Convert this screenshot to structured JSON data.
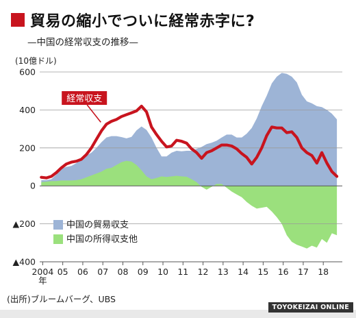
{
  "header": {
    "title": "貿易の縮小でついに経常赤字に?",
    "subtitle": "—中国の経常収支の推移—"
  },
  "footer": {
    "source": "(出所)ブルームバーグ、UBS",
    "credit": "TOYOKEIZAI ONLINE"
  },
  "colors": {
    "trade": "#9db4d6",
    "income": "#9be07d",
    "current": "#c8141e",
    "title_mark": "#c8141e"
  },
  "chart_data": {
    "type": "area",
    "unit_label": "(10億ドル)",
    "ylim": [
      -400,
      600
    ],
    "y_ticks": [
      {
        "value": 600,
        "label": "600"
      },
      {
        "value": 400,
        "label": "400"
      },
      {
        "value": 200,
        "label": "200"
      },
      {
        "value": 0,
        "label": "0"
      },
      {
        "value": -200,
        "label": "▲200"
      },
      {
        "value": -400,
        "label": "▲400"
      }
    ],
    "x_start": 2003.85,
    "x_end": 2018.95,
    "x_ticks": [
      {
        "year": 2004,
        "label": "2004",
        "sublabel": "年"
      },
      {
        "year": 2005,
        "label": "05"
      },
      {
        "year": 2006,
        "label": "06"
      },
      {
        "year": 2007,
        "label": "07"
      },
      {
        "year": 2008,
        "label": "08"
      },
      {
        "year": 2009,
        "label": "09"
      },
      {
        "year": 2010,
        "label": "10"
      },
      {
        "year": 2011,
        "label": "11"
      },
      {
        "year": 2012,
        "label": "12"
      },
      {
        "year": 2013,
        "label": "13"
      },
      {
        "year": 2014,
        "label": "14"
      },
      {
        "year": 2015,
        "label": "15"
      },
      {
        "year": 2016,
        "label": "16"
      },
      {
        "year": 2017,
        "label": "17"
      },
      {
        "year": 2018,
        "label": "18"
      }
    ],
    "legend_position": "bottom-left",
    "series": [
      {
        "name": "中国の貿易収支",
        "kind": "area",
        "color": "#9db4d6",
        "x": [
          2003.93,
          2004.18,
          2004.43,
          2004.68,
          2004.93,
          2005.18,
          2005.43,
          2005.68,
          2005.93,
          2006.18,
          2006.43,
          2006.68,
          2006.93,
          2007.18,
          2007.43,
          2007.68,
          2007.93,
          2008.18,
          2008.43,
          2008.68,
          2008.93,
          2009.18,
          2009.43,
          2009.68,
          2009.93,
          2010.18,
          2010.43,
          2010.68,
          2010.93,
          2011.18,
          2011.43,
          2011.68,
          2011.93,
          2012.18,
          2012.43,
          2012.68,
          2012.93,
          2013.18,
          2013.43,
          2013.68,
          2013.93,
          2014.18,
          2014.43,
          2014.68,
          2014.93,
          2015.18,
          2015.43,
          2015.68,
          2015.93,
          2016.18,
          2016.43,
          2016.68,
          2016.93,
          2017.18,
          2017.43,
          2017.68,
          2017.93,
          2018.18,
          2018.43,
          2018.68
        ],
        "values": [
          30,
          30,
          35,
          60,
          90,
          100,
          105,
          120,
          145,
          160,
          175,
          200,
          230,
          255,
          262,
          262,
          257,
          250,
          258,
          292,
          313,
          295,
          255,
          200,
          155,
          155,
          175,
          185,
          182,
          185,
          185,
          195,
          205,
          220,
          227,
          238,
          255,
          270,
          270,
          255,
          255,
          275,
          305,
          355,
          420,
          475,
          540,
          575,
          595,
          590,
          575,
          545,
          480,
          445,
          435,
          420,
          415,
          400,
          380,
          350
        ]
      },
      {
        "name": "中国の所得収支他",
        "kind": "area",
        "color": "#9be07d",
        "x": [
          2003.93,
          2004.18,
          2004.43,
          2004.68,
          2004.93,
          2005.18,
          2005.43,
          2005.68,
          2005.93,
          2006.18,
          2006.43,
          2006.68,
          2006.93,
          2007.18,
          2007.43,
          2007.68,
          2007.93,
          2008.18,
          2008.43,
          2008.68,
          2008.93,
          2009.18,
          2009.43,
          2009.68,
          2009.93,
          2010.18,
          2010.43,
          2010.68,
          2010.93,
          2011.18,
          2011.43,
          2011.68,
          2011.93,
          2012.18,
          2012.43,
          2012.68,
          2012.93,
          2013.18,
          2013.43,
          2013.68,
          2013.93,
          2014.18,
          2014.43,
          2014.68,
          2014.93,
          2015.18,
          2015.43,
          2015.68,
          2015.93,
          2016.18,
          2016.43,
          2016.68,
          2016.93,
          2017.18,
          2017.43,
          2017.68,
          2017.93,
          2018.18,
          2018.43,
          2018.68
        ],
        "values": [
          20,
          22,
          25,
          25,
          28,
          28,
          28,
          30,
          35,
          45,
          55,
          65,
          75,
          90,
          95,
          110,
          125,
          132,
          128,
          110,
          82,
          50,
          35,
          42,
          50,
          47,
          50,
          53,
          50,
          48,
          35,
          20,
          -5,
          -20,
          -5,
          10,
          10,
          -10,
          -30,
          -45,
          -60,
          -85,
          -105,
          -120,
          -115,
          -110,
          -135,
          -165,
          -200,
          -260,
          -295,
          -310,
          -320,
          -330,
          -315,
          -325,
          -280,
          -300,
          -250,
          -260
        ]
      },
      {
        "name": "経常収支",
        "kind": "line",
        "color": "#c8141e",
        "label_year": 2006.9,
        "x": [
          2003.93,
          2004.18,
          2004.43,
          2004.68,
          2004.93,
          2005.18,
          2005.43,
          2005.68,
          2005.93,
          2006.18,
          2006.43,
          2006.68,
          2006.93,
          2007.18,
          2007.43,
          2007.68,
          2007.93,
          2008.18,
          2008.43,
          2008.68,
          2008.93,
          2009.18,
          2009.43,
          2009.68,
          2009.93,
          2010.18,
          2010.43,
          2010.68,
          2010.93,
          2011.18,
          2011.43,
          2011.68,
          2011.93,
          2012.18,
          2012.43,
          2012.68,
          2012.93,
          2013.18,
          2013.43,
          2013.68,
          2013.93,
          2014.18,
          2014.43,
          2014.68,
          2014.93,
          2015.18,
          2015.43,
          2015.68,
          2015.93,
          2016.18,
          2016.43,
          2016.68,
          2016.93,
          2017.18,
          2017.43,
          2017.68,
          2017.93,
          2018.18,
          2018.43,
          2018.68
        ],
        "values": [
          45,
          42,
          50,
          70,
          95,
          115,
          125,
          130,
          140,
          165,
          200,
          245,
          290,
          325,
          340,
          350,
          365,
          375,
          385,
          395,
          420,
          390,
          310,
          270,
          235,
          205,
          210,
          240,
          235,
          225,
          195,
          175,
          145,
          175,
          185,
          200,
          215,
          215,
          210,
          195,
          170,
          150,
          115,
          150,
          200,
          265,
          310,
          305,
          305,
          280,
          285,
          255,
          200,
          175,
          160,
          120,
          175,
          120,
          75,
          50
        ]
      }
    ]
  }
}
